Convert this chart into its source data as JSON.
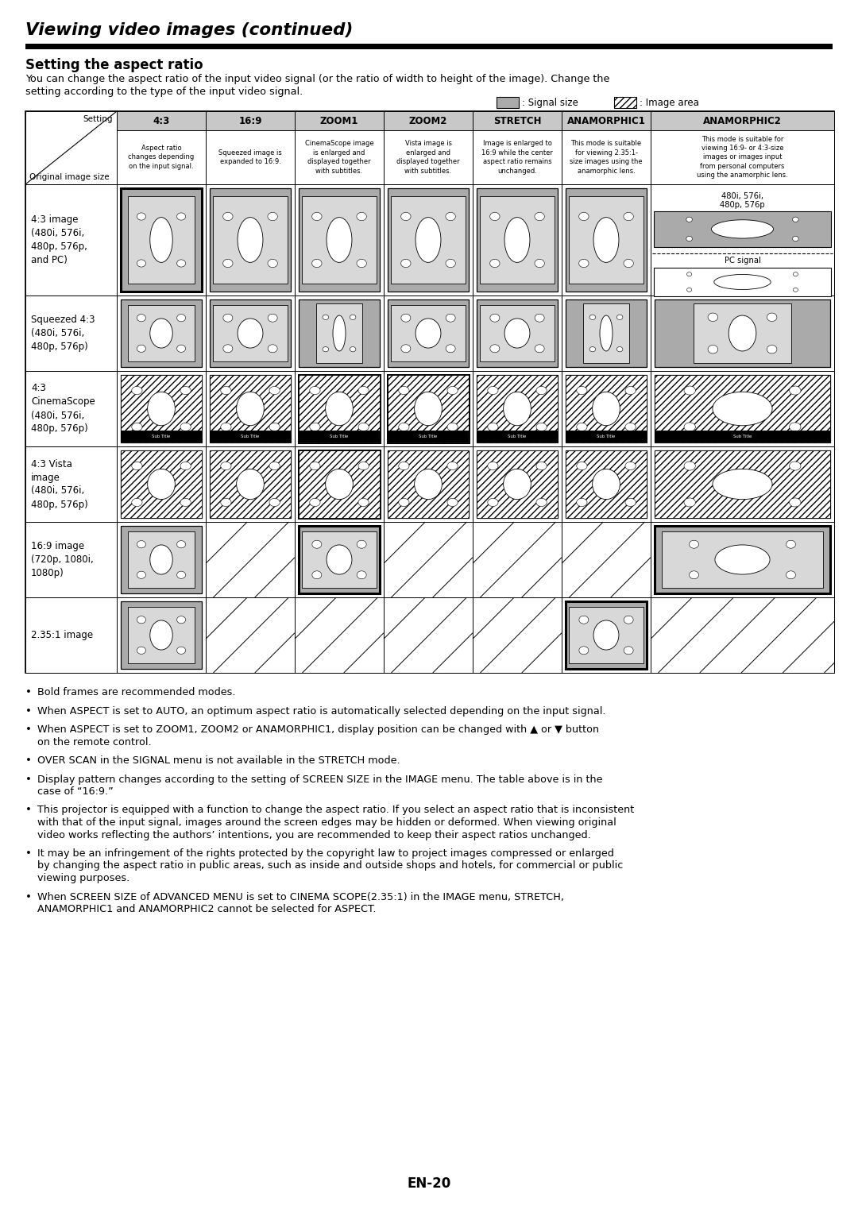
{
  "title": "Viewing video images (continued)",
  "section_title": "Setting the aspect ratio",
  "intro_line1": "You can change the aspect ratio of the input video signal (or the ratio of width to height of the image). Change the",
  "intro_line2": "setting according to the type of the input video signal.",
  "legend_signal": ": Signal size",
  "legend_image": ": Image area",
  "col_headers": [
    "4:3",
    "16:9",
    "ZOOM1",
    "ZOOM2",
    "STRETCH",
    "ANAMORPHIC1",
    "ANAMORPHIC2"
  ],
  "col_descs": [
    "Aspect ratio\nchanges depending\non the input signal.",
    "Squeezed image is\nexpanded to 16:9.",
    "CinemaScope image\nis enlarged and\ndisplayed together\nwith subtitles.",
    "Vista image is\nenlarged and\ndisplayed together\nwith subtitles.",
    "Image is enlarged to\n16:9 while the center\naspect ratio remains\nunchanged.",
    "This mode is suitable\nfor viewing 2.35:1-\nsize images using the\nanamorphic lens.",
    "This mode is suitable for\nviewing 16:9- or 4:3-size\nimages or images input\nfrom personal computers\nusing the anamorphic lens."
  ],
  "row_labels": [
    "4:3 image\n(480i, 576i,\n480p, 576p,\nand PC)",
    "Squeezed 4:3\n(480i, 576i,\n480p, 576p)",
    "4:3\nCinemaScope\n(480i, 576i,\n480p, 576p)",
    "4:3 Vista\nimage\n(480i, 576i,\n480p, 576p)",
    "16:9 image\n(720p, 1080i,\n1080p)",
    "2.35:1 image"
  ],
  "bullet_points": [
    "Bold frames are recommended modes.",
    "When ASPECT is set to AUTO, an optimum aspect ratio is automatically selected depending on the input signal.",
    "When ASPECT is set to ZOOM1, ZOOM2 or ANAMORPHIC1, display position can be changed with ▲ or ▼ button\non the remote control.",
    "OVER SCAN in the SIGNAL menu is not available in the STRETCH mode.",
    "Display pattern changes according to the setting of SCREEN SIZE in the IMAGE menu. The table above is in the\ncase of “16:9.”",
    "This projector is equipped with a function to change the aspect ratio. If you select an aspect ratio that is inconsistent\nwith that of the input signal, images around the screen edges may be hidden or deformed. When viewing original\nvideo works reflecting the authors’ intentions, you are recommended to keep their aspect ratios unchanged.",
    "It may be an infringement of the rights protected by the copyright law to project images compressed or enlarged\nby changing the aspect ratio in public areas, such as inside and outside shops and hotels, for commercial or public\nviewing purposes.",
    "When SCREEN SIZE of ADVANCED MENU is set to CINEMA SCOPE(2.35:1) in the IMAGE menu, STRETCH,\nANAMORPHIC1 and ANAMORPHIC2 cannot be selected for ASPECT."
  ],
  "page_number": "EN-20",
  "grey": "#aaaaaa",
  "light_grey": "#d0d0d0",
  "inner_grey": "#d8d8d8",
  "header_grey": "#c8c8c8"
}
